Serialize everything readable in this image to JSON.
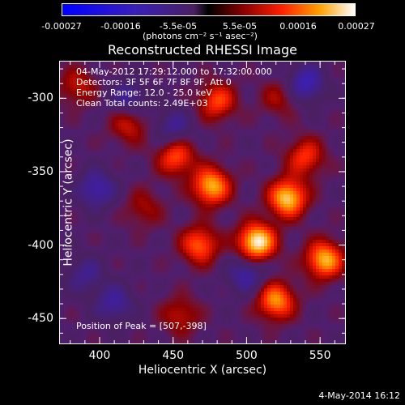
{
  "colorbar": {
    "ticks": [
      "-0.00027",
      "-0.00016",
      "-5.5e-05",
      "5.5e-05",
      "0.00016",
      "0.00027"
    ],
    "unit_label": "(photons cm⁻² s⁻¹ asec⁻²)",
    "min": -0.00027,
    "max": 0.00027
  },
  "chart_data": {
    "type": "heatmap",
    "title": "Reconstructed RHESSI Image",
    "xlabel": "Heliocentric X (arcsec)",
    "ylabel": "Heliocentric Y (arcsec)",
    "xlim": [
      373,
      567
    ],
    "ylim": [
      -467,
      -275
    ],
    "x_ticks": [
      "400",
      "450",
      "500",
      "550"
    ],
    "y_ticks": [
      "-300",
      "-350",
      "-400",
      "-450"
    ],
    "annotations": {
      "line1": "04-May-2012 17:29:12.000 to 17:32:00.000",
      "line2": "Detectors: 3F 5F 6F 7F 8F 9F, Att 0",
      "line3": "Energy Range: 12.0 - 25.0 keV",
      "line4": "Clean     Total counts: 2.49E+03",
      "peak": "Position of Peak = [507,-398]"
    },
    "sources": [
      {
        "x": 507,
        "y": -398,
        "value": 0.00027
      },
      {
        "x": 528,
        "y": -368,
        "value": 0.00024
      },
      {
        "x": 476,
        "y": -360,
        "value": 0.00022
      },
      {
        "x": 553,
        "y": -410,
        "value": 0.00022
      },
      {
        "x": 520,
        "y": -438,
        "value": 0.0002
      },
      {
        "x": 468,
        "y": -400,
        "value": 0.00017
      },
      {
        "x": 452,
        "y": -340,
        "value": 0.00016
      },
      {
        "x": 480,
        "y": -302,
        "value": 0.00015
      },
      {
        "x": 540,
        "y": -340,
        "value": 0.00014
      },
      {
        "x": 420,
        "y": -318,
        "value": 0.00011
      },
      {
        "x": 385,
        "y": -292,
        "value": 0.0001
      },
      {
        "x": 430,
        "y": -375,
        "value": 8e-05
      },
      {
        "x": 455,
        "y": -448,
        "value": 0.0001
      },
      {
        "x": 522,
        "y": -300,
        "value": 8e-05
      },
      {
        "x": 420,
        "y": -300,
        "value": -0.0001
      },
      {
        "x": 398,
        "y": -362,
        "value": -0.00012
      },
      {
        "x": 390,
        "y": -420,
        "value": -8e-05
      },
      {
        "x": 500,
        "y": -420,
        "value": -0.00011
      },
      {
        "x": 540,
        "y": -290,
        "value": -0.00013
      },
      {
        "x": 450,
        "y": -320,
        "value": -9e-05
      },
      {
        "x": 410,
        "y": -440,
        "value": -0.0001
      }
    ]
  },
  "footer": {
    "timestamp": "4-May-2014 16:12"
  }
}
